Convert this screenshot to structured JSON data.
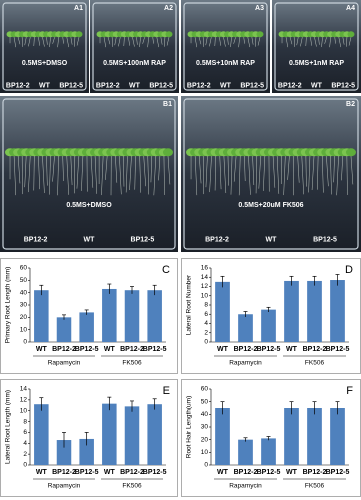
{
  "photos": [
    {
      "panel": "A1",
      "label": "0.5MS+DMSO",
      "genotypes": [
        "BP12-2",
        "WT",
        "BP12-5"
      ]
    },
    {
      "panel": "A2",
      "label": "0.5MS+100nM RAP",
      "genotypes": [
        "BP12-2",
        "WT",
        "BP12-5"
      ]
    },
    {
      "panel": "A3",
      "label": "0.5MS+10nM RAP",
      "genotypes": [
        "BP12-2",
        "WT",
        "BP12-5"
      ]
    },
    {
      "panel": "A4",
      "label": "0.5MS+1nM RAP",
      "genotypes": [
        "BP12-2",
        "WT",
        "BP12-5"
      ]
    },
    {
      "panel": "B1",
      "label": "0.5MS+DMSO",
      "genotypes": [
        "BP12-2",
        "WT",
        "BP12-5"
      ]
    },
    {
      "panel": "B2",
      "label": "0.5MS+20uM FK506",
      "genotypes": [
        "BP12-2",
        "WT",
        "BP12-5"
      ]
    }
  ],
  "chart_data": [
    {
      "type": "bar",
      "panel": "C",
      "ylabel": "Primary Root Length (mm)",
      "categories": [
        "WT",
        "BP12-2",
        "BP12-5",
        "WT",
        "BP12-2",
        "BP12-5"
      ],
      "groups": [
        "Rapamycin",
        "FK506"
      ],
      "values": [
        42,
        20,
        24,
        43,
        42,
        42
      ],
      "errors": [
        4,
        2,
        2,
        4,
        3,
        4
      ],
      "color": "#4f81bd",
      "ylim": [
        0,
        60
      ],
      "yticks": [
        0,
        10,
        20,
        30,
        40,
        50,
        60
      ]
    },
    {
      "type": "bar",
      "panel": "D",
      "ylabel": "Lateral Root Number",
      "categories": [
        "WT",
        "BP12-2",
        "BP12-5",
        "WT",
        "BP12-2",
        "BP12-5"
      ],
      "groups": [
        "Rapamycin",
        "FK506"
      ],
      "values": [
        13,
        6,
        7,
        13.2,
        13.2,
        13.4
      ],
      "errors": [
        1.2,
        0.6,
        0.5,
        1,
        1,
        1.2
      ],
      "color": "#4f81bd",
      "ylim": [
        0,
        16
      ],
      "yticks": [
        0,
        2,
        4,
        6,
        8,
        10,
        12,
        14,
        16
      ]
    },
    {
      "type": "bar",
      "panel": "E",
      "ylabel": "Lateral Root Length (mm)",
      "categories": [
        "WT",
        "BP12-2",
        "BP12-5",
        "WT",
        "BP12-2",
        "BP12-5"
      ],
      "groups": [
        "Rapamycin",
        "FK506"
      ],
      "values": [
        11.2,
        4.6,
        4.8,
        11.3,
        10.8,
        11.2
      ],
      "errors": [
        1.2,
        1.4,
        1.2,
        1.2,
        1,
        1
      ],
      "color": "#4f81bd",
      "ylim": [
        0,
        14
      ],
      "yticks": [
        0,
        2,
        4,
        6,
        8,
        10,
        12,
        14
      ]
    },
    {
      "type": "bar",
      "panel": "F",
      "ylabel": "Root Hair Length(um)",
      "categories": [
        "WT",
        "BP12-2",
        "BP12-5",
        "WT",
        "BP12-2",
        "BP12-5"
      ],
      "groups": [
        "Rapamycin",
        "FK506"
      ],
      "values": [
        45,
        20,
        21,
        45,
        45,
        45
      ],
      "errors": [
        5,
        1.5,
        1.5,
        5,
        5,
        5
      ],
      "color": "#4f81bd",
      "ylim": [
        0,
        60
      ],
      "yticks": [
        0,
        10,
        20,
        30,
        40,
        50,
        60
      ]
    }
  ]
}
